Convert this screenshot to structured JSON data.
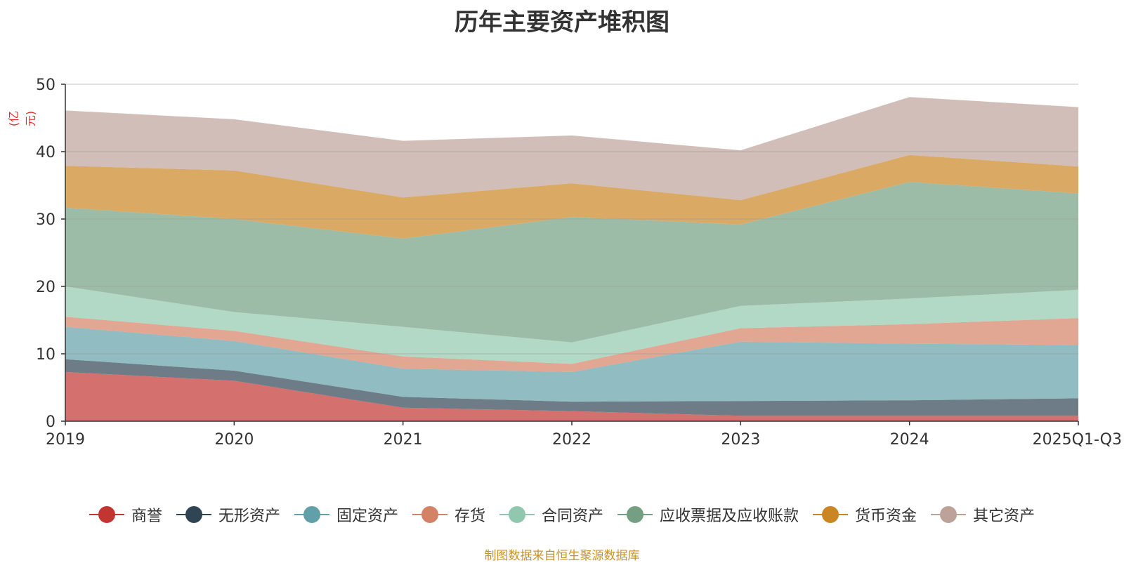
{
  "chart_data": {
    "type": "area",
    "stacked": true,
    "title": "历年主要资产堆积图",
    "ylabel": "(亿元)",
    "ylim": [
      0,
      50
    ],
    "yticks": [
      0,
      10,
      20,
      30,
      40,
      50
    ],
    "categories": [
      "2019",
      "2020",
      "2021",
      "2022",
      "2023",
      "2024",
      "2025Q1-Q3"
    ],
    "series": [
      {
        "name": "商誉",
        "color": "#c23531",
        "values": [
          7.3,
          6.0,
          2.0,
          1.5,
          0.8,
          0.8,
          0.8
        ]
      },
      {
        "name": "无形资产",
        "color": "#2f4554",
        "values": [
          1.9,
          1.5,
          1.6,
          1.4,
          2.2,
          2.3,
          2.6
        ]
      },
      {
        "name": "固定资产",
        "color": "#61a0a8",
        "values": [
          4.8,
          4.4,
          4.2,
          4.4,
          8.8,
          8.4,
          7.9
        ]
      },
      {
        "name": "存货",
        "color": "#d48265",
        "values": [
          1.5,
          1.5,
          1.8,
          1.2,
          2.0,
          2.9,
          4.0
        ]
      },
      {
        "name": "合同资产",
        "color": "#91c7ae",
        "values": [
          4.5,
          2.8,
          4.4,
          3.2,
          3.3,
          3.8,
          4.2
        ]
      },
      {
        "name": "应收票据及应收账款",
        "color": "#749f83",
        "values": [
          11.7,
          13.8,
          13.1,
          18.6,
          12.1,
          17.3,
          14.3
        ]
      },
      {
        "name": "货币资金",
        "color": "#ca8622",
        "values": [
          6.2,
          7.2,
          6.1,
          5.0,
          3.6,
          4.0,
          4.0
        ]
      },
      {
        "name": "其它资产",
        "color": "#bda29a",
        "values": [
          8.2,
          7.6,
          8.4,
          7.1,
          7.4,
          8.6,
          8.8
        ]
      }
    ]
  },
  "footer": {
    "source": "制图数据来自恒生聚源数据库"
  }
}
